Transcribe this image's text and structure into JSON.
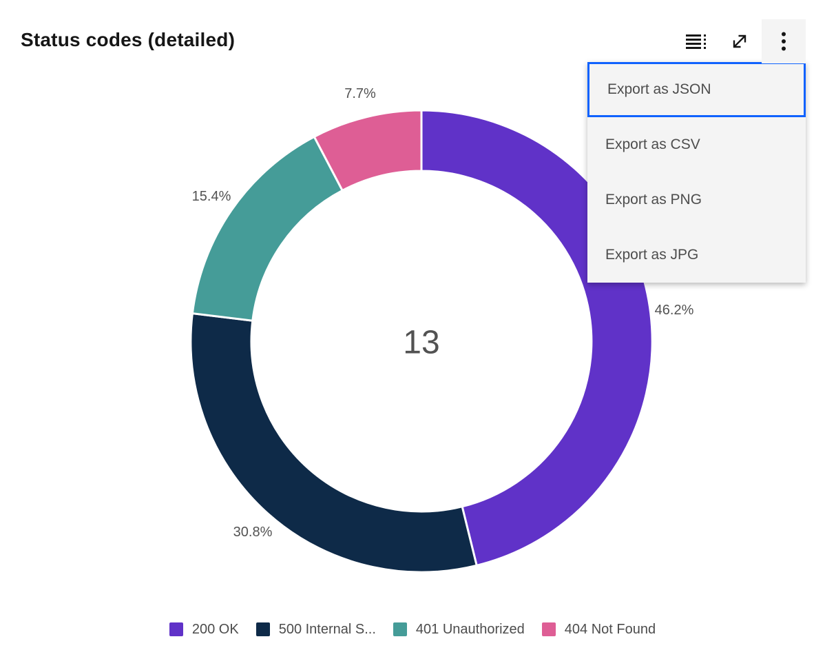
{
  "header": {
    "title": "Status codes (detailed)"
  },
  "toolbar": {
    "buttons": [
      {
        "name": "show-data-table",
        "icon": "data-table-icon"
      },
      {
        "name": "expand",
        "icon": "expand-icon"
      },
      {
        "name": "overflow-menu",
        "icon": "overflow-menu-icon",
        "state": "open"
      }
    ]
  },
  "export_menu": {
    "items": [
      {
        "label": "Export as JSON",
        "focused": true
      },
      {
        "label": "Export as CSV",
        "focused": false
      },
      {
        "label": "Export as PNG",
        "focused": false
      },
      {
        "label": "Export as JPG",
        "focused": false
      }
    ],
    "focus_color": "#0f62fe",
    "background": "#f4f4f4"
  },
  "chart_data": {
    "type": "pie",
    "subtype": "donut",
    "title": "Status codes (detailed)",
    "categories": [
      "200 OK",
      "500 Internal S...",
      "401 Unauthorized",
      "404 Not Found"
    ],
    "values": [
      6,
      4,
      2,
      1
    ],
    "total": 13,
    "center_total": "13",
    "percent_labels": [
      "46.2%",
      "30.8%",
      "15.4%",
      "7.7%"
    ],
    "colors": [
      "#6032c8",
      "#0e2a48",
      "#459c98",
      "#de5e95"
    ],
    "label_color": "#525252",
    "center_color": "#525252",
    "legend_position": "bottom",
    "legend_labels": [
      "200 OK",
      "500 Internal S...",
      "401 Unauthorized",
      "404 Not Found"
    ],
    "start_angle_deg": 0,
    "direction": "clockwise"
  }
}
